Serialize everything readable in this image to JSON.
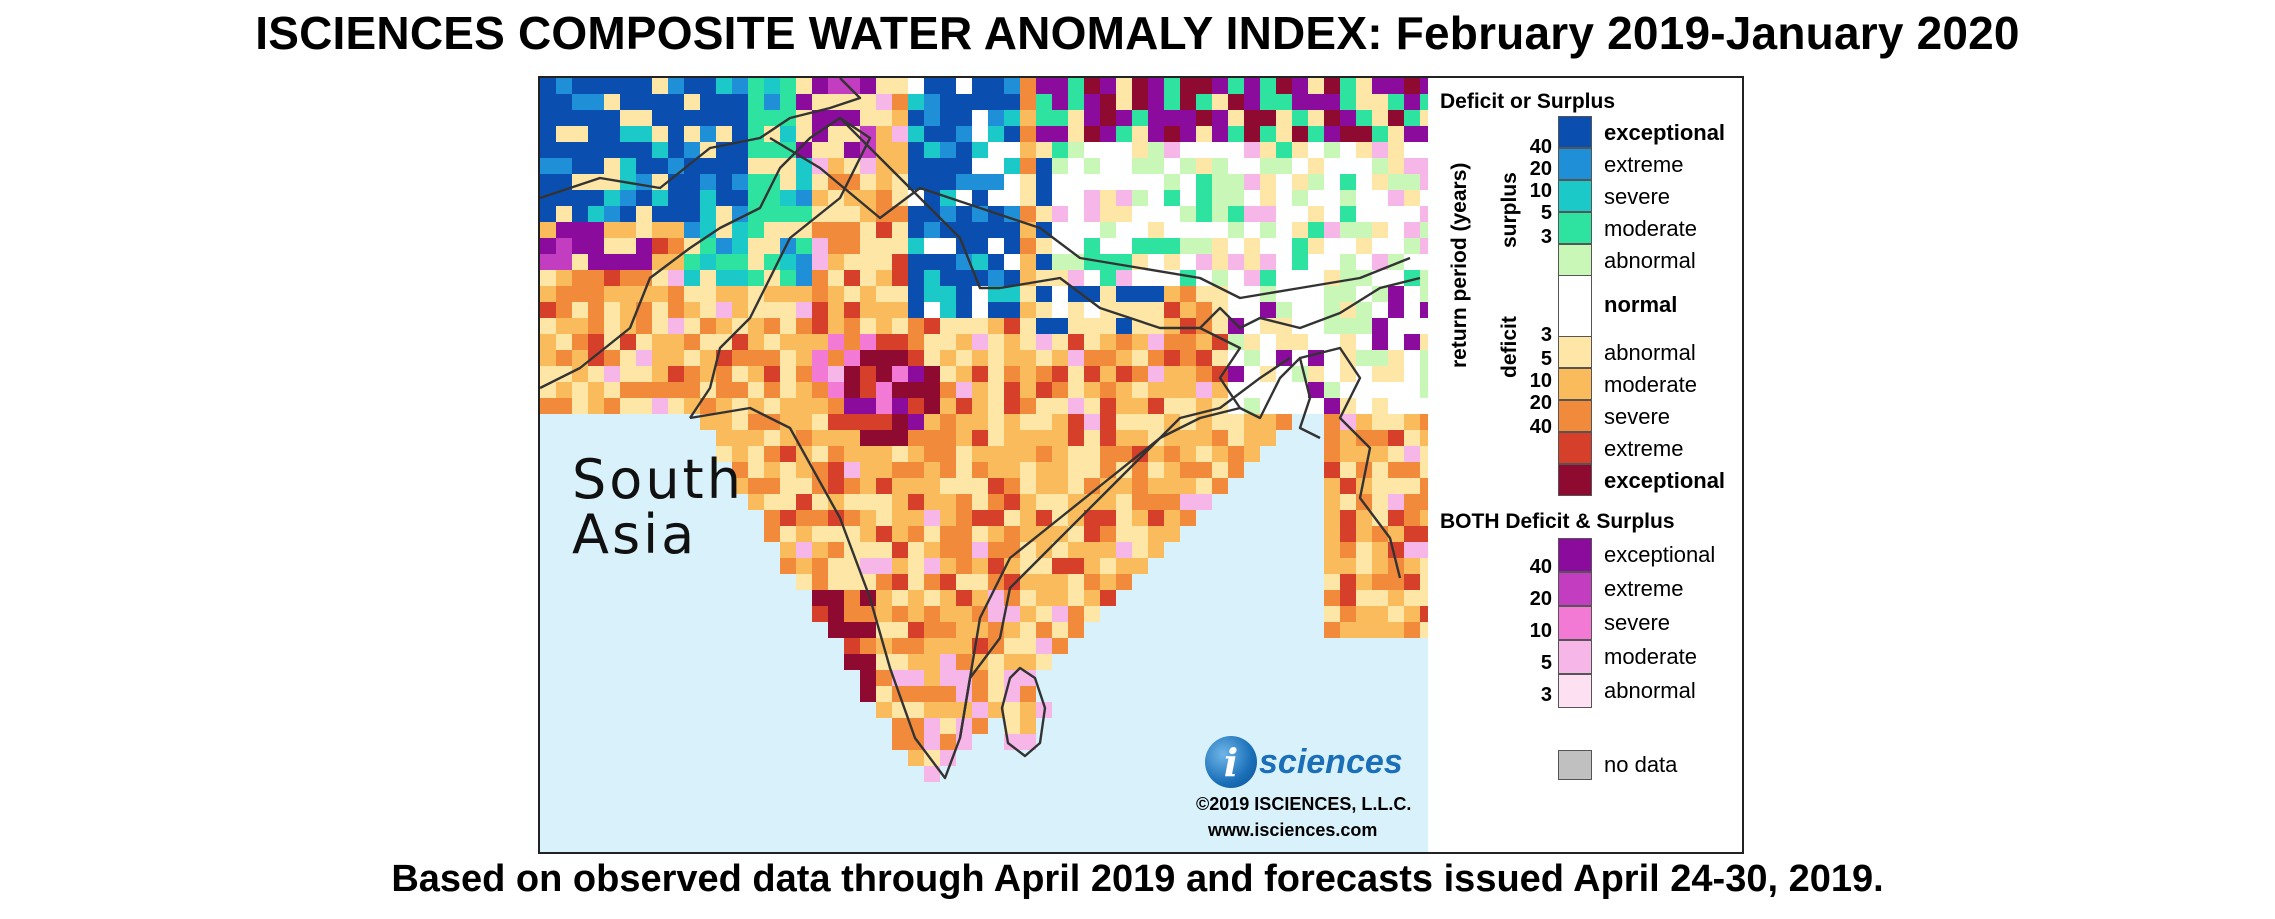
{
  "title": "ISCIENCES COMPOSITE WATER ANOMALY INDEX: February 2019-January 2020",
  "subtitle": "Based on observed data through April 2019 and forecasts issued April 24-30, 2019.",
  "map": {
    "region_label_line1": "South",
    "region_label_line2": "Asia",
    "logo_letter": "i",
    "logo_text": "sciences",
    "copyright": "©2019 ISCIENCES, L.L.C.",
    "website": "www.isciences.com",
    "colors": {
      "ocean": "#d9f1fb",
      "border": "#333333"
    }
  },
  "legend": {
    "heading": "Deficit or Surplus",
    "axis_label": "return period (years)",
    "surplus_label": "surplus",
    "deficit_label": "deficit",
    "surplus_ticks": [
      "40",
      "20",
      "10",
      "5",
      "3"
    ],
    "deficit_ticks": [
      "3",
      "5",
      "10",
      "20",
      "40"
    ],
    "surplus": [
      {
        "label": "exceptional",
        "color": "#0a4fb0",
        "bold": true
      },
      {
        "label": "extreme",
        "color": "#1f8fd8",
        "bold": false
      },
      {
        "label": "severe",
        "color": "#1cc9c9",
        "bold": false
      },
      {
        "label": "moderate",
        "color": "#2ee3a0",
        "bold": false
      },
      {
        "label": "abnormal",
        "color": "#c8f7b8",
        "bold": false
      }
    ],
    "normal": {
      "label": "normal",
      "color": "#ffffff"
    },
    "deficit": [
      {
        "label": "abnormal",
        "color": "#fde6a6",
        "bold": false
      },
      {
        "label": "moderate",
        "color": "#f9bb5c",
        "bold": false
      },
      {
        "label": "severe",
        "color": "#f28a3c",
        "bold": false
      },
      {
        "label": "extreme",
        "color": "#d6402a",
        "bold": false
      },
      {
        "label": "exceptional",
        "color": "#8e0a30",
        "bold": true
      }
    ],
    "both_heading": "BOTH Deficit & Surplus",
    "both_ticks": [
      "40",
      "20",
      "10",
      "5",
      "3"
    ],
    "both": [
      {
        "label": "exceptional",
        "color": "#8a0b9c"
      },
      {
        "label": "extreme",
        "color": "#c23dbf"
      },
      {
        "label": "severe",
        "color": "#f27ad4"
      },
      {
        "label": "moderate",
        "color": "#f7b6e8"
      },
      {
        "label": "abnormal",
        "color": "#fde0f1"
      }
    ],
    "no_data": {
      "label": "no data",
      "color": "#c0c0c0"
    }
  }
}
